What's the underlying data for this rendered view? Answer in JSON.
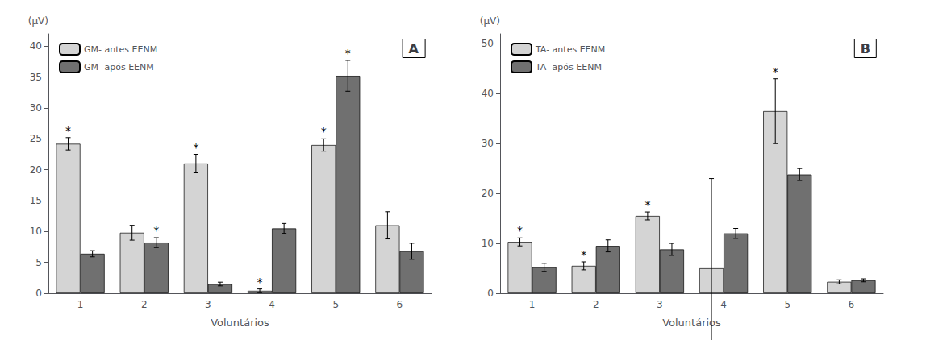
{
  "chart_data": [
    {
      "type": "bar",
      "title": "A",
      "xlabel": "Voluntários",
      "ylabel": "(μV)",
      "categories": [
        "1",
        "2",
        "3",
        "4",
        "5",
        "6"
      ],
      "ylim": [
        0,
        42
      ],
      "yticks": [
        0,
        5,
        10,
        15,
        20,
        25,
        30,
        35,
        40
      ],
      "grid": false,
      "legend": "upper left",
      "series": [
        {
          "name": "GM- antes EENM",
          "color": "#d4d4d4",
          "values": [
            24.2,
            9.8,
            21.0,
            0.4,
            24.0,
            11.0
          ],
          "errors": [
            1.0,
            1.2,
            1.5,
            0.3,
            1.0,
            2.2
          ],
          "annotations": [
            "*",
            null,
            "*",
            "*",
            "*",
            null
          ]
        },
        {
          "name": "GM- após EENM",
          "color": "#707070",
          "values": [
            6.4,
            8.2,
            1.5,
            10.5,
            35.2,
            6.8
          ],
          "errors": [
            0.5,
            0.8,
            0.3,
            0.8,
            2.5,
            1.3
          ],
          "annotations": [
            null,
            "*",
            null,
            null,
            "*",
            null
          ]
        }
      ]
    },
    {
      "type": "bar",
      "title": "B",
      "xlabel": "Voluntários",
      "ylabel": "(μV)",
      "categories": [
        "1",
        "2",
        "3",
        "4",
        "5",
        "6"
      ],
      "ylim": [
        0,
        52
      ],
      "yticks": [
        0,
        10,
        20,
        30,
        40,
        50
      ],
      "grid": false,
      "legend": "upper left",
      "series": [
        {
          "name": "TA- antes EENM",
          "color": "#d4d4d4",
          "values": [
            10.3,
            5.5,
            15.5,
            5.0,
            36.5,
            2.3
          ],
          "errors": [
            0.8,
            0.8,
            0.8,
            18.0,
            6.5,
            0.4
          ],
          "annotations": [
            "*",
            "*",
            "*",
            null,
            "*",
            null
          ]
        },
        {
          "name": "TA- após EENM",
          "color": "#707070",
          "values": [
            5.2,
            9.5,
            8.8,
            12.0,
            23.8,
            2.6
          ],
          "errors": [
            0.8,
            1.2,
            1.2,
            1.0,
            1.2,
            0.3
          ],
          "annotations": [
            null,
            null,
            null,
            null,
            null,
            null
          ]
        }
      ]
    }
  ]
}
